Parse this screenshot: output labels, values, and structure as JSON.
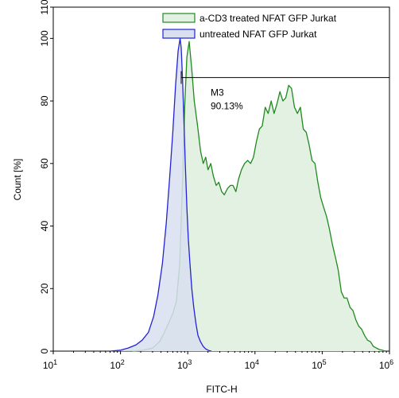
{
  "chart_data": {
    "type": "area",
    "xlabel": "FITC-H",
    "ylabel": "Count [%]",
    "x_scale": "log10",
    "xlim": [
      10,
      1000000
    ],
    "ylim": [
      0,
      110
    ],
    "x_ticks": [
      {
        "value": 10,
        "base": "10",
        "exp": "1"
      },
      {
        "value": 100,
        "base": "10",
        "exp": "2"
      },
      {
        "value": 1000,
        "base": "10",
        "exp": "3"
      },
      {
        "value": 10000,
        "base": "10",
        "exp": "4"
      },
      {
        "value": 100000,
        "base": "10",
        "exp": "5"
      },
      {
        "value": 1000000,
        "base": "10",
        "exp": "6"
      }
    ],
    "y_ticks": [
      "0",
      "20",
      "40",
      "60",
      "80",
      "100",
      "110"
    ],
    "legend_position": "top-right",
    "series": [
      {
        "name": "a-CD3 treated NFAT GFP Jurkat",
        "color": "#1f8a1f",
        "fill": "#e3f1e3",
        "x": [
          150,
          220,
          300,
          380,
          450,
          520,
          600,
          680,
          760,
          840,
          900,
          970,
          1050,
          1150,
          1250,
          1400,
          1550,
          1700,
          1850,
          2000,
          2200,
          2400,
          2650,
          2900,
          3200,
          3500,
          3900,
          4300,
          4700,
          5200,
          5700,
          6300,
          7000,
          7800,
          8600,
          9500,
          10500,
          11600,
          12800,
          14200,
          15700,
          17400,
          19200,
          21200,
          23500,
          26000,
          28700,
          31700,
          35000,
          38700,
          42800,
          47300,
          52300,
          57800,
          63900,
          70600,
          78000,
          86200,
          95300,
          105000,
          116000,
          128000,
          142000,
          157000,
          173000,
          192000,
          212000,
          234000,
          259000,
          286000,
          316000,
          349000,
          386000,
          427000,
          472000,
          522000,
          577000,
          638000,
          705000,
          779000,
          861000
        ],
        "values": [
          0,
          0.3,
          1,
          3,
          6,
          9,
          12,
          16,
          28,
          55,
          78,
          94,
          99,
          90,
          80,
          72,
          64,
          60,
          62,
          58,
          60,
          56,
          53,
          54,
          51,
          50,
          52,
          53,
          53,
          51,
          55,
          58,
          60,
          61,
          60,
          62,
          67,
          71,
          72,
          78,
          76,
          80,
          76,
          79,
          83,
          80,
          81,
          85,
          84,
          78,
          76,
          78,
          71,
          70,
          66,
          61,
          60,
          54,
          49,
          46,
          43,
          39,
          34,
          30,
          26,
          19,
          17,
          17,
          14,
          13,
          10,
          8,
          7,
          5,
          3.5,
          3,
          1.5,
          1,
          0.5,
          0.3,
          0
        ]
      },
      {
        "name": "untreated NFAT GFP Jurkat",
        "color": "#2222d6",
        "fill": "#d8dff0",
        "x": [
          70,
          100,
          130,
          170,
          210,
          260,
          310,
          360,
          420,
          480,
          540,
          600,
          660,
          720,
          770,
          800,
          840,
          880,
          920,
          970,
          1020,
          1080,
          1150,
          1230,
          1320,
          1420,
          1550,
          1700,
          1850,
          2050,
          2250
        ],
        "values": [
          0,
          0.3,
          1,
          2,
          3.5,
          6,
          11,
          18,
          28,
          41,
          56,
          70,
          85,
          96,
          100,
          97,
          86,
          73,
          60,
          46,
          36,
          28,
          20,
          14,
          9,
          5,
          3,
          1.5,
          0.7,
          0.2,
          0
        ]
      }
    ],
    "annotation": {
      "label": "M3",
      "value_text": "90.13%",
      "x_start": 800,
      "x_end": 1000000,
      "y": 87.5
    }
  }
}
